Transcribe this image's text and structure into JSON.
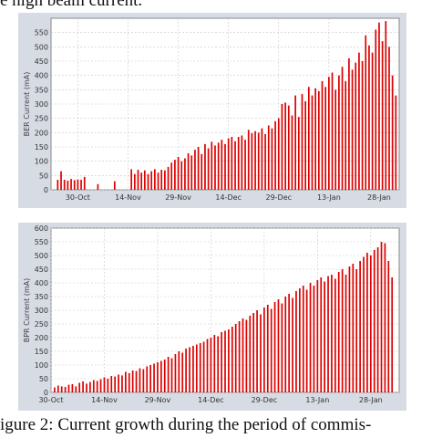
{
  "captions": {
    "top": "e high beam current.",
    "bottom": "igure 2: Current growth during the period of commis-"
  },
  "chart_data": [
    {
      "type": "bar",
      "ylabel": "BER Current (mA)",
      "ylim": [
        0,
        600
      ],
      "yticks": [
        0,
        50,
        100,
        150,
        200,
        250,
        300,
        350,
        400,
        450,
        500,
        550
      ],
      "xticks": [
        "30-Oct",
        "14-Nov",
        "29-Nov",
        "14-Dec",
        "29-Dec",
        "13-Jan",
        "28-Jan"
      ],
      "xrange_days": [
        -8,
        96
      ],
      "x_unit": "days from 30-Oct",
      "grid": true,
      "color": "#dd0000",
      "bars": [
        [
          -6,
          35
        ],
        [
          -5,
          65
        ],
        [
          -4,
          35
        ],
        [
          -3,
          32
        ],
        [
          -2,
          38
        ],
        [
          -1,
          34
        ],
        [
          0,
          36
        ],
        [
          1,
          35
        ],
        [
          2,
          45
        ],
        [
          6,
          20
        ],
        [
          11,
          30
        ],
        [
          16,
          72
        ],
        [
          17,
          55
        ],
        [
          18,
          70
        ],
        [
          19,
          60
        ],
        [
          20,
          68
        ],
        [
          21,
          55
        ],
        [
          22,
          65
        ],
        [
          23,
          72
        ],
        [
          24,
          60
        ],
        [
          25,
          70
        ],
        [
          26,
          68
        ],
        [
          27,
          80
        ],
        [
          28,
          95
        ],
        [
          29,
          105
        ],
        [
          30,
          115
        ],
        [
          31,
          100
        ],
        [
          32,
          110
        ],
        [
          33,
          128
        ],
        [
          34,
          120
        ],
        [
          35,
          140
        ],
        [
          36,
          150
        ],
        [
          37,
          125
        ],
        [
          38,
          160
        ],
        [
          39,
          145
        ],
        [
          40,
          168
        ],
        [
          41,
          155
        ],
        [
          42,
          165
        ],
        [
          43,
          175
        ],
        [
          44,
          160
        ],
        [
          45,
          180
        ],
        [
          46,
          185
        ],
        [
          47,
          170
        ],
        [
          48,
          185
        ],
        [
          49,
          190
        ],
        [
          50,
          175
        ],
        [
          51,
          210
        ],
        [
          52,
          198
        ],
        [
          53,
          205
        ],
        [
          54,
          200
        ],
        [
          55,
          215
        ],
        [
          56,
          195
        ],
        [
          57,
          225
        ],
        [
          58,
          215
        ],
        [
          59,
          240
        ],
        [
          60,
          250
        ],
        [
          61,
          300
        ],
        [
          62,
          305
        ],
        [
          63,
          295
        ],
        [
          64,
          260
        ],
        [
          65,
          330
        ],
        [
          66,
          255
        ],
        [
          67,
          335
        ],
        [
          68,
          310
        ],
        [
          69,
          360
        ],
        [
          70,
          330
        ],
        [
          71,
          355
        ],
        [
          72,
          345
        ],
        [
          73,
          380
        ],
        [
          74,
          360
        ],
        [
          75,
          395
        ],
        [
          76,
          410
        ],
        [
          77,
          350
        ],
        [
          78,
          400
        ],
        [
          79,
          430
        ],
        [
          80,
          380
        ],
        [
          81,
          460
        ],
        [
          82,
          420
        ],
        [
          83,
          445
        ],
        [
          84,
          480
        ],
        [
          85,
          450
        ],
        [
          86,
          540
        ],
        [
          87,
          505
        ],
        [
          88,
          480
        ],
        [
          89,
          560
        ],
        [
          90,
          585
        ],
        [
          91,
          520
        ],
        [
          92,
          590
        ],
        [
          93,
          500
        ],
        [
          94,
          400
        ],
        [
          95,
          330
        ]
      ]
    },
    {
      "type": "bar",
      "ylabel": "BPR Current (mA)",
      "ylim": [
        0,
        600
      ],
      "yticks": [
        0,
        50,
        100,
        150,
        200,
        250,
        300,
        350,
        400,
        450,
        500,
        550,
        600
      ],
      "xticks": [
        "30-Oct",
        "14-Nov",
        "29-Nov",
        "14-Dec",
        "29-Dec",
        "13-Jan",
        "28-Jan"
      ],
      "xrange_days": [
        0,
        98
      ],
      "x_unit": "days from 30-Oct",
      "grid": true,
      "color": "#dd0000",
      "bars": [
        [
          1,
          18
        ],
        [
          2,
          25
        ],
        [
          3,
          22
        ],
        [
          4,
          20
        ],
        [
          5,
          28
        ],
        [
          6,
          30
        ],
        [
          7,
          22
        ],
        [
          8,
          35
        ],
        [
          9,
          40
        ],
        [
          10,
          32
        ],
        [
          11,
          38
        ],
        [
          12,
          45
        ],
        [
          13,
          42
        ],
        [
          14,
          48
        ],
        [
          15,
          55
        ],
        [
          16,
          50
        ],
        [
          17,
          60
        ],
        [
          18,
          58
        ],
        [
          19,
          65
        ],
        [
          20,
          62
        ],
        [
          21,
          75
        ],
        [
          22,
          70
        ],
        [
          23,
          80
        ],
        [
          24,
          78
        ],
        [
          25,
          88
        ],
        [
          26,
          85
        ],
        [
          27,
          95
        ],
        [
          28,
          100
        ],
        [
          29,
          105
        ],
        [
          30,
          110
        ],
        [
          31,
          115
        ],
        [
          32,
          120
        ],
        [
          33,
          130
        ],
        [
          34,
          125
        ],
        [
          35,
          140
        ],
        [
          36,
          150
        ],
        [
          37,
          145
        ],
        [
          38,
          160
        ],
        [
          39,
          165
        ],
        [
          40,
          170
        ],
        [
          41,
          175
        ],
        [
          42,
          180
        ],
        [
          43,
          185
        ],
        [
          44,
          195
        ],
        [
          45,
          200
        ],
        [
          46,
          210
        ],
        [
          47,
          205
        ],
        [
          48,
          220
        ],
        [
          49,
          225
        ],
        [
          50,
          230
        ],
        [
          51,
          240
        ],
        [
          52,
          250
        ],
        [
          53,
          260
        ],
        [
          54,
          270
        ],
        [
          55,
          265
        ],
        [
          56,
          280
        ],
        [
          57,
          290
        ],
        [
          58,
          300
        ],
        [
          59,
          285
        ],
        [
          60,
          310
        ],
        [
          61,
          320
        ],
        [
          62,
          305
        ],
        [
          63,
          330
        ],
        [
          64,
          340
        ],
        [
          65,
          325
        ],
        [
          66,
          350
        ],
        [
          67,
          360
        ],
        [
          68,
          345
        ],
        [
          69,
          370
        ],
        [
          70,
          380
        ],
        [
          71,
          390
        ],
        [
          72,
          375
        ],
        [
          73,
          400
        ],
        [
          74,
          390
        ],
        [
          75,
          410
        ],
        [
          76,
          420
        ],
        [
          77,
          405
        ],
        [
          78,
          425
        ],
        [
          79,
          430
        ],
        [
          80,
          415
        ],
        [
          81,
          440
        ],
        [
          82,
          450
        ],
        [
          83,
          430
        ],
        [
          84,
          460
        ],
        [
          85,
          470
        ],
        [
          86,
          450
        ],
        [
          87,
          480
        ],
        [
          88,
          495
        ],
        [
          89,
          510
        ],
        [
          90,
          500
        ],
        [
          91,
          520
        ],
        [
          92,
          530
        ],
        [
          93,
          550
        ],
        [
          94,
          545
        ],
        [
          95,
          480
        ],
        [
          96,
          420
        ]
      ]
    }
  ]
}
